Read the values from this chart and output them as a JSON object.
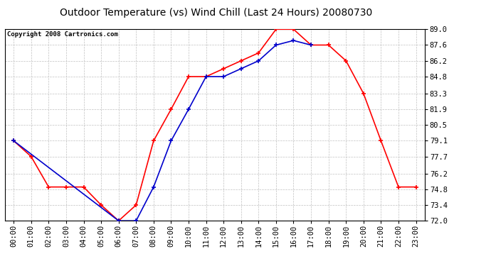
{
  "title": "Outdoor Temperature (vs) Wind Chill (Last 24 Hours) 20080730",
  "copyright_text": "Copyright 2008 Cartronics.com",
  "hours": [
    "00:00",
    "01:00",
    "02:00",
    "03:00",
    "04:00",
    "05:00",
    "06:00",
    "07:00",
    "08:00",
    "09:00",
    "10:00",
    "11:00",
    "12:00",
    "13:00",
    "14:00",
    "15:00",
    "16:00",
    "17:00",
    "18:00",
    "19:00",
    "20:00",
    "21:00",
    "22:00",
    "23:00"
  ],
  "outdoor_temp": [
    79.1,
    77.7,
    75.0,
    75.0,
    75.0,
    73.4,
    72.0,
    73.4,
    79.1,
    81.9,
    84.8,
    84.8,
    85.5,
    86.2,
    86.9,
    89.0,
    89.0,
    87.6,
    87.6,
    86.2,
    83.3,
    79.1,
    75.0,
    75.0
  ],
  "wind_chill": [
    79.1,
    null,
    null,
    null,
    null,
    null,
    72.0,
    72.0,
    75.0,
    79.1,
    81.9,
    84.8,
    84.8,
    85.5,
    86.2,
    87.6,
    88.0,
    87.6,
    null,
    null,
    null,
    null,
    null,
    null
  ],
  "temp_color": "#FF0000",
  "wind_color": "#0000CC",
  "bg_color": "#FFFFFF",
  "plot_bg_color": "#FFFFFF",
  "grid_color": "#C0C0C0",
  "ylim": [
    72.0,
    89.0
  ],
  "yticks": [
    72.0,
    73.4,
    74.8,
    76.2,
    77.7,
    79.1,
    80.5,
    81.9,
    83.3,
    84.8,
    86.2,
    87.6,
    89.0
  ],
  "title_fontsize": 10,
  "copyright_fontsize": 6.5,
  "tick_fontsize": 7.5
}
